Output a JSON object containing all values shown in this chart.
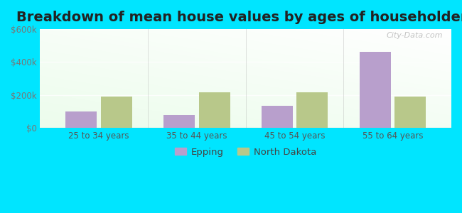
{
  "title": "Breakdown of mean house values by ages of householders",
  "categories": [
    "25 to 34 years",
    "35 to 44 years",
    "45 to 54 years",
    "55 to 64 years"
  ],
  "epping_values": [
    100000,
    75000,
    135000,
    460000
  ],
  "nd_values": [
    190000,
    215000,
    215000,
    190000
  ],
  "epping_color": "#b89fcc",
  "nd_color": "#b8c88a",
  "ylim": [
    0,
    600000
  ],
  "yticks": [
    0,
    200000,
    400000,
    600000
  ],
  "ytick_labels": [
    "$0",
    "$200k",
    "$400k",
    "$600k"
  ],
  "bg_colors": [
    "#c8e8b0",
    "#e8f8e0",
    "#f0faf0",
    "#f8fff8"
  ],
  "outer_bg": "#00e5ff",
  "title_fontsize": 14,
  "bar_width": 0.32,
  "legend_labels": [
    "Epping",
    "North Dakota"
  ],
  "watermark": "City-Data.com"
}
